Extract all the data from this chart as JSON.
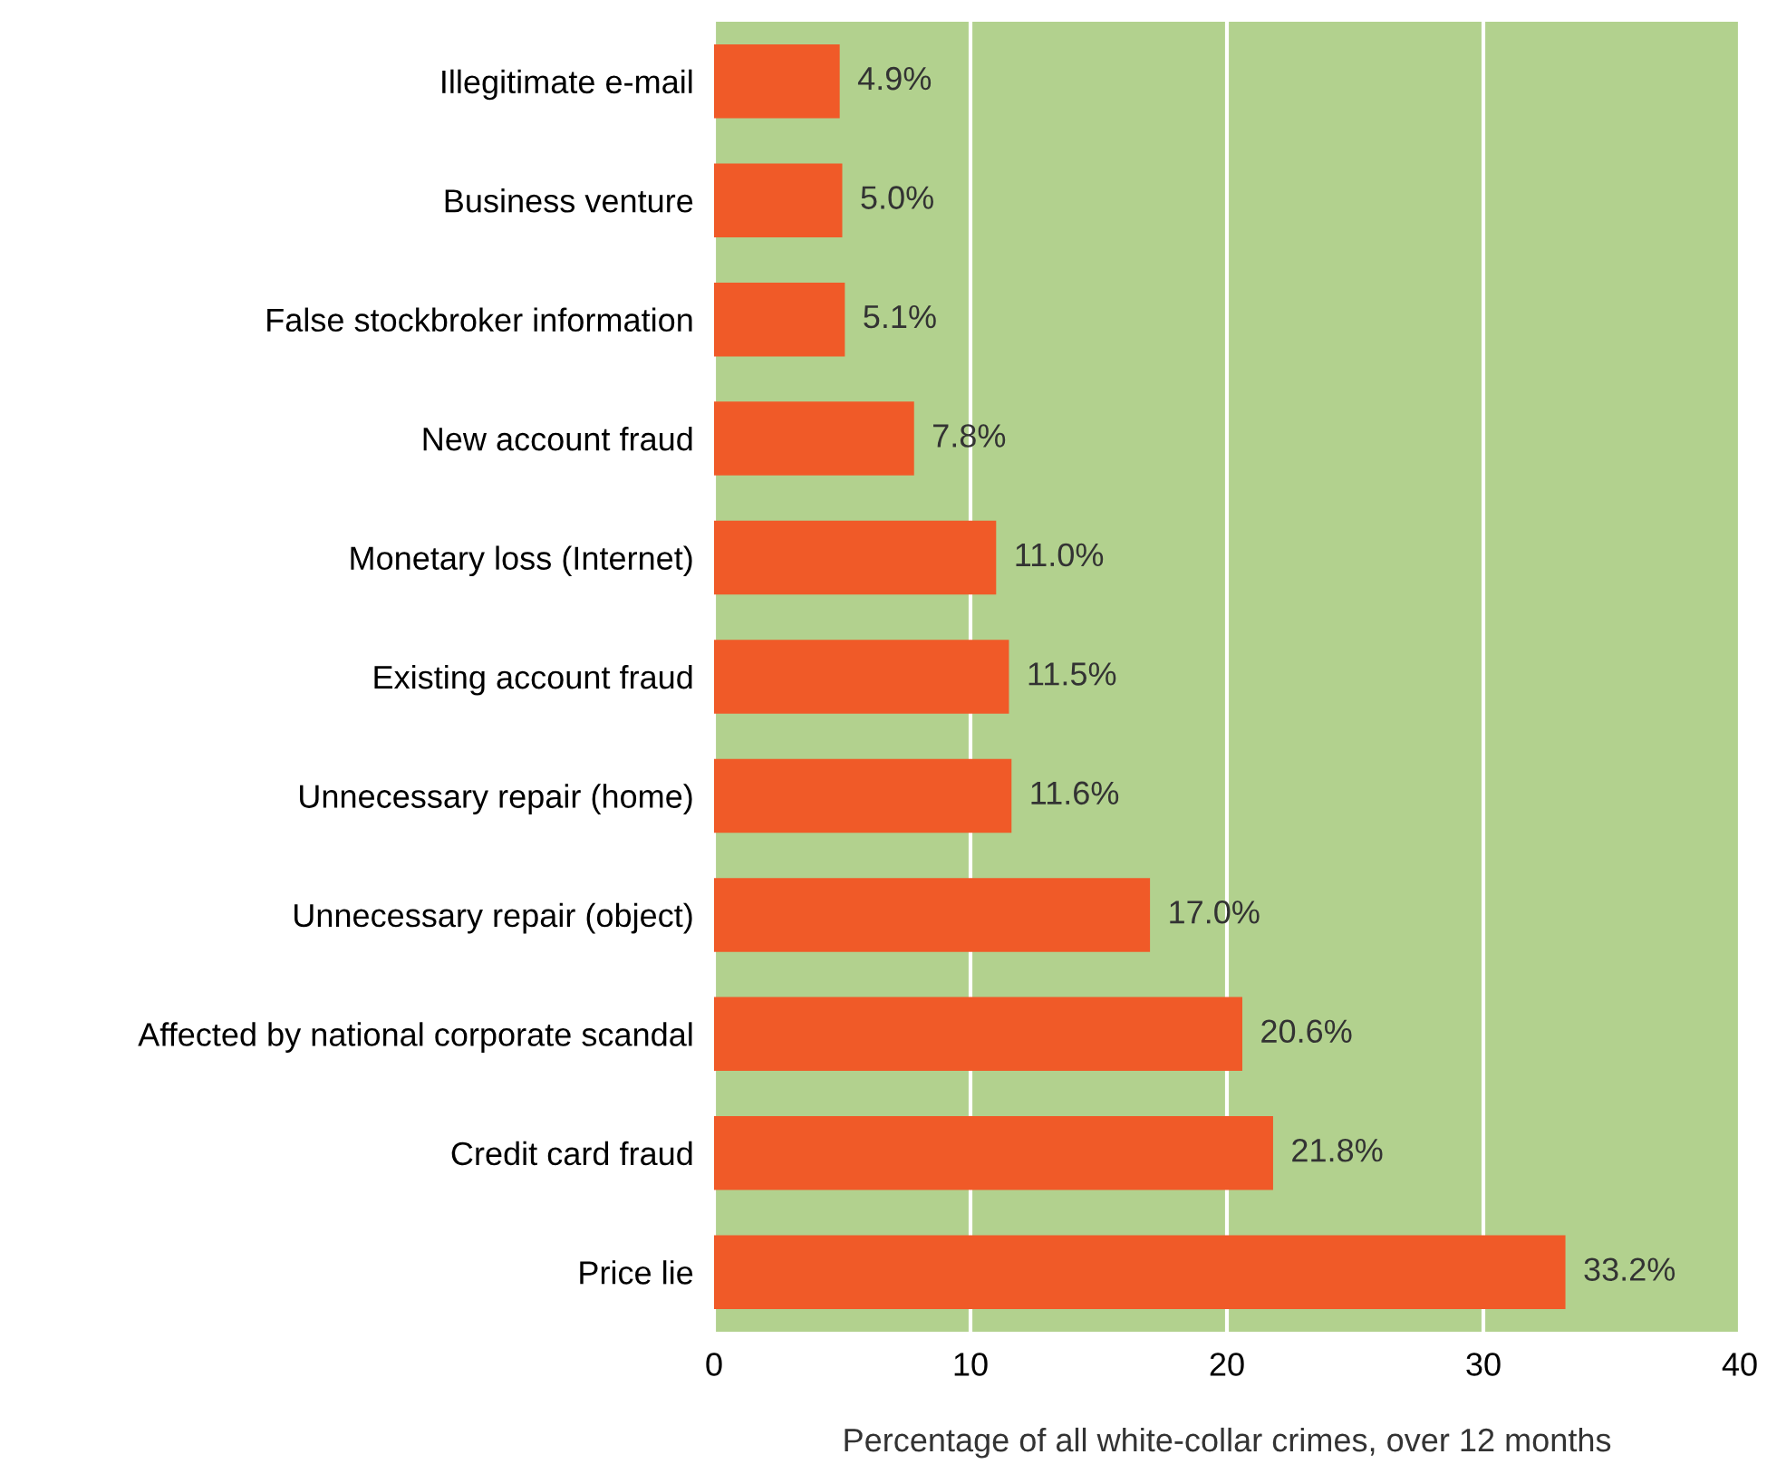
{
  "chart_data": {
    "type": "bar",
    "orientation": "horizontal",
    "xlabel": "Percentage of all white-collar crimes, over 12 months",
    "categories": [
      "Illegitimate e-mail",
      "Business venture",
      "False stockbroker information",
      "New account fraud",
      "Monetary loss (Internet)",
      "Existing account fraud",
      "Unnecessary repair (home)",
      "Unnecessary repair (object)",
      "Affected by national corporate scandal",
      "Credit card fraud",
      "Price lie"
    ],
    "values": [
      4.9,
      5.0,
      5.1,
      7.8,
      11.0,
      11.5,
      11.6,
      17.0,
      20.6,
      21.8,
      33.2
    ],
    "value_labels": [
      "4.9%",
      "5.0%",
      "5.1%",
      "7.8%",
      "11.0%",
      "11.5%",
      "11.6%",
      "17.0%",
      "20.6%",
      "21.8%",
      "33.2%"
    ],
    "color": "#f05a28",
    "xlim": [
      0,
      40
    ],
    "xticks": [
      0,
      10,
      20,
      30,
      40
    ],
    "grid": "x"
  }
}
